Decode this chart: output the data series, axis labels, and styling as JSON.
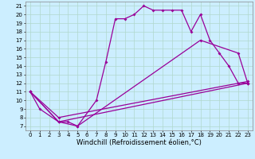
{
  "xlabel": "Windchill (Refroidissement éolien,°C)",
  "bg_color": "#cceeff",
  "line_color": "#990099",
  "grid_color": "#b0d8cc",
  "xlim": [
    -0.5,
    23.5
  ],
  "ylim": [
    6.5,
    21.5
  ],
  "xticks": [
    0,
    1,
    2,
    3,
    4,
    5,
    6,
    7,
    8,
    9,
    10,
    11,
    12,
    13,
    14,
    15,
    16,
    17,
    18,
    19,
    20,
    21,
    22,
    23
  ],
  "yticks": [
    7,
    8,
    9,
    10,
    11,
    12,
    13,
    14,
    15,
    16,
    17,
    18,
    19,
    20,
    21
  ],
  "curve1_x": [
    0,
    1,
    3,
    4,
    5,
    7,
    8,
    9,
    10,
    11,
    12,
    13,
    14,
    15,
    16,
    17,
    18,
    19,
    20,
    21,
    22,
    23
  ],
  "curve1_y": [
    11,
    9,
    7.5,
    7.5,
    7,
    10,
    14.5,
    19.5,
    19.5,
    20,
    21,
    20.5,
    20.5,
    20.5,
    20.5,
    18,
    20,
    17,
    15.5,
    14,
    12,
    12
  ],
  "curve2_x": [
    0,
    3,
    5,
    18,
    22,
    23
  ],
  "curve2_y": [
    11,
    7.5,
    7,
    17,
    15.5,
    12
  ],
  "curve3_x": [
    0,
    3,
    23
  ],
  "curve3_y": [
    11,
    7.5,
    12
  ],
  "curve4_x": [
    0,
    3,
    23
  ],
  "curve4_y": [
    11,
    8,
    12.2
  ],
  "marker": "D",
  "markersize": 2,
  "linewidth": 0.9,
  "tick_fontsize": 5,
  "xlabel_fontsize": 6
}
